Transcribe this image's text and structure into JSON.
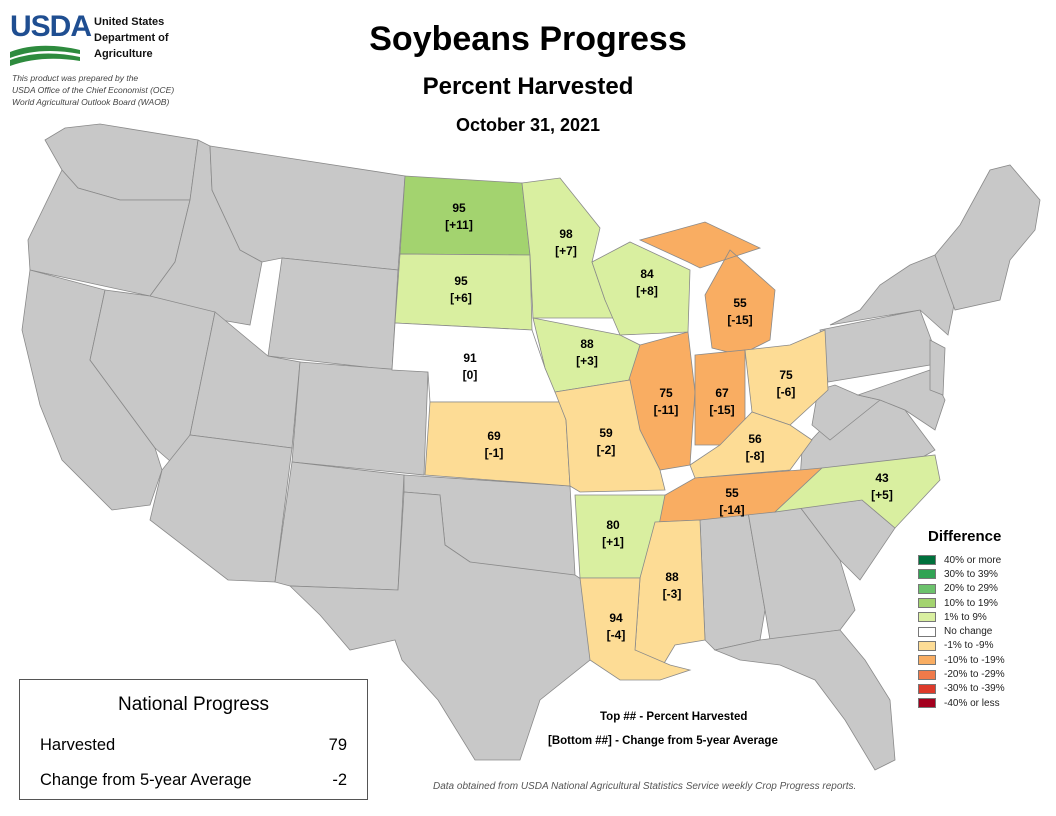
{
  "header": {
    "logo_text": "USDA",
    "agency_lines": [
      "United States",
      "Department of",
      "Agriculture"
    ],
    "prepared_lines": [
      "This product was prepared by the",
      "USDA Office of the Chief Economist (OCE)",
      "World Agricultural Outlook Board (WAOB)"
    ],
    "title": "Soybeans Progress",
    "subtitle": "Percent Harvested",
    "date": "October 31, 2021"
  },
  "colors": {
    "no_data": "#c8c8c8",
    "border": "#8a8a8a",
    "usda_blue": "#1f4e91",
    "usda_green": "#2e8b3e"
  },
  "states": [
    {
      "id": "ND",
      "value": "95",
      "diff": "[+11]",
      "color": "#a3d36f"
    },
    {
      "id": "SD",
      "value": "95",
      "diff": "[+6]",
      "color": "#d9efa0"
    },
    {
      "id": "MN",
      "value": "98",
      "diff": "[+7]",
      "color": "#d9efa0"
    },
    {
      "id": "WI",
      "value": "84",
      "diff": "[+8]",
      "color": "#d9efa0"
    },
    {
      "id": "MI",
      "value": "55",
      "diff": "[-15]",
      "color": "#f9ad62"
    },
    {
      "id": "NE",
      "value": "91",
      "diff": "[0]",
      "color": "#ffffff"
    },
    {
      "id": "IA",
      "value": "88",
      "diff": "[+3]",
      "color": "#d9efa0"
    },
    {
      "id": "IL",
      "value": "75",
      "diff": "[-11]",
      "color": "#f9ad62"
    },
    {
      "id": "IN",
      "value": "67",
      "diff": "[-15]",
      "color": "#f9ad62"
    },
    {
      "id": "OH",
      "value": "75",
      "diff": "[-6]",
      "color": "#fddc95"
    },
    {
      "id": "KS",
      "value": "69",
      "diff": "[-1]",
      "color": "#fddc95"
    },
    {
      "id": "MO",
      "value": "59",
      "diff": "[-2]",
      "color": "#fddc95"
    },
    {
      "id": "KY",
      "value": "56",
      "diff": "[-8]",
      "color": "#fddc95"
    },
    {
      "id": "TN",
      "value": "55",
      "diff": "[-14]",
      "color": "#f9ad62"
    },
    {
      "id": "NC",
      "value": "43",
      "diff": "[+5]",
      "color": "#d9efa0"
    },
    {
      "id": "AR",
      "value": "80",
      "diff": "[+1]",
      "color": "#d9efa0"
    },
    {
      "id": "MS",
      "value": "88",
      "diff": "[-3]",
      "color": "#fddc95"
    },
    {
      "id": "LA",
      "value": "94",
      "diff": "[-4]",
      "color": "#fddc95"
    }
  ],
  "legend": {
    "title": "Difference",
    "items": [
      {
        "label": "40% or more",
        "color": "#00703c"
      },
      {
        "label": "30% to 39%",
        "color": "#31a354"
      },
      {
        "label": "20% to 29%",
        "color": "#6cc26c"
      },
      {
        "label": "10% to 19%",
        "color": "#a3d36f"
      },
      {
        "label": "1% to 9%",
        "color": "#d9efa0"
      },
      {
        "label": "No change",
        "color": "#ffffff"
      },
      {
        "label": "-1% to -9%",
        "color": "#fddc95"
      },
      {
        "label": "-10% to -19%",
        "color": "#f9ad62"
      },
      {
        "label": "-20% to -29%",
        "color": "#f07a4a"
      },
      {
        "label": "-30% to -39%",
        "color": "#dd3a2a"
      },
      {
        "label": "-40% or less",
        "color": "#a3001e"
      }
    ]
  },
  "national": {
    "title": "National Progress",
    "harvested_label": "Harvested",
    "harvested_value": "79",
    "change_label": "Change from 5-year Average",
    "change_value": "-2"
  },
  "key": {
    "top": "Top ## - Percent Harvested",
    "bottom": "[Bottom ##] - Change from 5-year Average"
  },
  "source": "Data obtained from USDA National Agricultural Statistics Service weekly Crop Progress reports."
}
